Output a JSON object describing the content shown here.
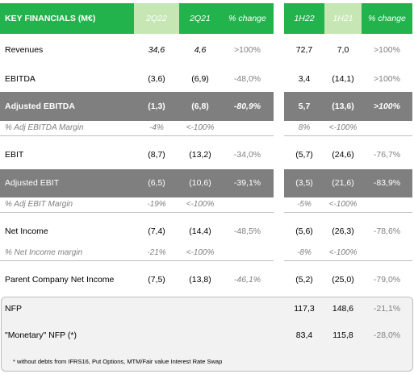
{
  "header": {
    "title": "KEY FINANCIALS (M€)",
    "cols": [
      "2Q22",
      "2Q21",
      "% change",
      "1H22",
      "1H21",
      "% change"
    ]
  },
  "rows": [
    {
      "label": "Revenues",
      "v": [
        "34,6",
        "4,6",
        ">100%",
        "72,7",
        "7,0",
        ">100%"
      ]
    },
    {
      "label": "EBITDA",
      "v": [
        "(3,6)",
        "(6,9)",
        "-48,0%",
        "3,4",
        "(14,1)",
        ">100%"
      ]
    },
    {
      "label": "Adjusted EBITDA",
      "v": [
        "(1,3)",
        "(6,8)",
        "-80,9%",
        "5,7",
        "(13,6)",
        ">100%"
      ]
    },
    {
      "label": "% Adj EBITDA Margin",
      "v": [
        "-4%",
        "<-100%",
        "",
        "8%",
        "<-100%",
        ""
      ]
    },
    {
      "label": "EBIT",
      "v": [
        "(8,7)",
        "(13,2)",
        "-34,0%",
        "(5,7)",
        "(24,6)",
        "-76,7%"
      ]
    },
    {
      "label": "Adjusted EBIT",
      "v": [
        "(6,5)",
        "(10,6)",
        "-39,1%",
        "(3,5)",
        "(21,6)",
        "-83,9%"
      ]
    },
    {
      "label": "% Adj EBIT Margin",
      "v": [
        "-19%",
        "<-100%",
        "",
        "-5%",
        "<-100%",
        ""
      ]
    },
    {
      "label": "Net Income",
      "v": [
        "(7,4)",
        "(14,4)",
        "-48,5%",
        "(5,6)",
        "(26,3)",
        "-78,6%"
      ]
    },
    {
      "label": "% Net Income margin",
      "v": [
        "-21%",
        "<-100%",
        "",
        "-8%",
        "<-100%",
        ""
      ]
    },
    {
      "label": "Parent Company Net Income",
      "v": [
        "(7,5)",
        "(13,8)",
        "-46,1%",
        "(5,2)",
        "(25,0)",
        "-79,0%"
      ]
    }
  ],
  "nfp": [
    {
      "label": "NFP",
      "v": [
        "117,3",
        "148,6",
        "-21,1%"
      ]
    },
    {
      "label": "\"Monetary\" NFP (*)",
      "v": [
        "83,4",
        "115,8",
        "-28,0%"
      ]
    }
  ],
  "footnote": "* without debts from IFRS16, Put Options, MTM/Fair value Interest Rate Swap",
  "colors": {
    "green": "#22b34c",
    "light_green": "#c6e6b4",
    "gray": "#7f7f7f"
  }
}
